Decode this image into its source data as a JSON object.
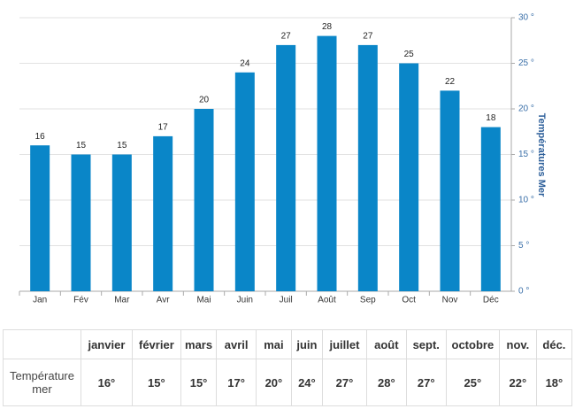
{
  "chart_data": {
    "type": "bar",
    "y_title": "Températures Mer",
    "categories": [
      "Jan",
      "Fév",
      "Mar",
      "Avr",
      "Mai",
      "Juin",
      "Juil",
      "Août",
      "Sep",
      "Oct",
      "Nov",
      "Déc"
    ],
    "values": [
      16,
      15,
      15,
      17,
      20,
      24,
      27,
      28,
      27,
      25,
      22,
      18
    ],
    "color": "#0a86c8",
    "ylim": [
      0,
      30
    ],
    "yticks": [
      {
        "value": 0,
        "label": "0 °"
      },
      {
        "value": 5,
        "label": "5 °"
      },
      {
        "value": 10,
        "label": "10 °"
      },
      {
        "value": 15,
        "label": "15 °"
      },
      {
        "value": 20,
        "label": "20 °"
      },
      {
        "value": 25,
        "label": "25 °"
      },
      {
        "value": 30,
        "label": "30 °"
      }
    ],
    "grid": true,
    "axis_side": "right"
  },
  "table": {
    "header": [
      "janvier",
      "février",
      "mars",
      "avril",
      "mai",
      "juin",
      "juillet",
      "août",
      "sept.",
      "octobre",
      "nov.",
      "déc."
    ],
    "row_label": "Température mer",
    "row": [
      "16°",
      "15°",
      "15°",
      "17°",
      "20°",
      "24°",
      "27°",
      "28°",
      "27°",
      "25°",
      "22°",
      "18°"
    ]
  }
}
